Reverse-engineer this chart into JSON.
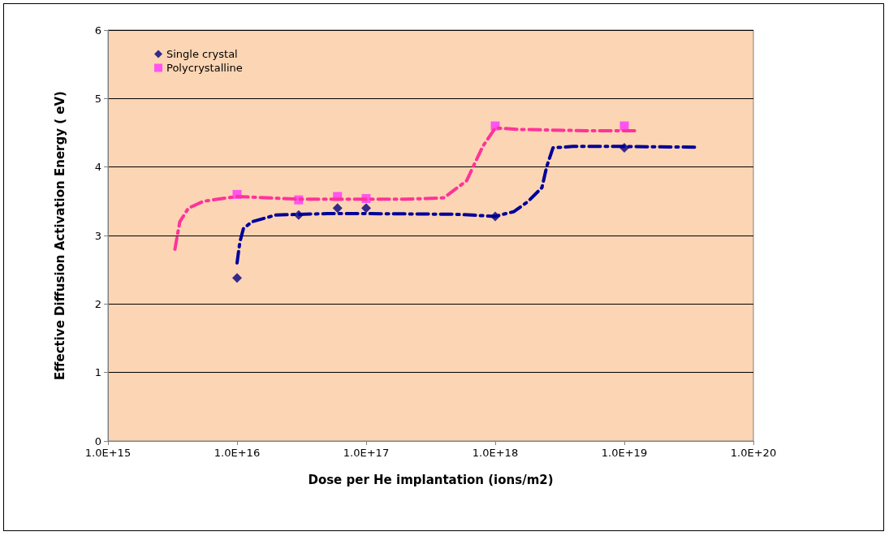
{
  "chart_data": {
    "type": "scatter",
    "xlabel": "Dose per He implantation (ions/m2)",
    "ylabel": "Effective Diffusion Activation Energy ( eV)",
    "log": "x",
    "grid": "y",
    "legend": "top left",
    "xlim": [
      1000000000000000.0,
      1e+20
    ],
    "xticks": [
      {
        "value": 1000000000000000.0,
        "label": "1.0E+15"
      },
      {
        "value": 1e+16,
        "label": "1.0E+16"
      },
      {
        "value": 1e+17,
        "label": "1.0E+17"
      },
      {
        "value": 1e+18,
        "label": "1.0E+18"
      },
      {
        "value": 1e+19,
        "label": "1.0E+19"
      },
      {
        "value": 1e+20,
        "label": "1.0E+20"
      }
    ],
    "ylim": [
      0,
      6
    ],
    "yticks": [
      0,
      1,
      2,
      3,
      4,
      5,
      6
    ],
    "series": [
      {
        "type": "line",
        "color": "#ff3399",
        "line_style": "dashed",
        "marker": "none",
        "x": [
          3300000000000000.0,
          3600000000000000.0,
          4200000000000000.0,
          5500000000000000.0,
          1e+16,
          3e+16,
          1e+17,
          2e+17,
          4e+17,
          6e+17,
          8e+17,
          1e+18,
          1.5e+18,
          5e+18,
          1.2e+19
        ],
        "values": [
          2.8,
          3.2,
          3.4,
          3.5,
          3.57,
          3.53,
          3.53,
          3.53,
          3.55,
          3.8,
          4.3,
          4.57,
          4.55,
          4.53,
          4.53
        ]
      },
      {
        "type": "line",
        "color": "#000099",
        "line_style": "dashed",
        "marker": "none",
        "x": [
          1e+16,
          1.05e+16,
          1.12e+16,
          1.3e+16,
          2e+16,
          5e+16,
          1e+17,
          5e+17,
          1e+18,
          1.4e+18,
          1.8e+18,
          2.3e+18,
          2.5e+18,
          2.8e+18,
          4e+18,
          1e+19,
          3.7e+19
        ],
        "values": [
          2.6,
          2.9,
          3.1,
          3.2,
          3.3,
          3.32,
          3.32,
          3.31,
          3.28,
          3.35,
          3.5,
          3.7,
          4.0,
          4.28,
          4.3,
          4.3,
          4.29
        ]
      },
      {
        "name": "Single crystal",
        "color": "#000080",
        "marker": "diamond",
        "x": [
          1e+16,
          3e+16,
          6e+16,
          1e+17,
          1e+18,
          1e+19
        ],
        "values": [
          2.38,
          3.3,
          3.4,
          3.4,
          3.28,
          4.28
        ]
      },
      {
        "name": "Polycrystalline",
        "color": "#ff33ff",
        "marker": "square",
        "x": [
          1e+16,
          3e+16,
          6e+16,
          1e+17,
          1e+18,
          1e+19
        ],
        "values": [
          3.6,
          3.52,
          3.57,
          3.54,
          4.6,
          4.6
        ]
      }
    ]
  }
}
